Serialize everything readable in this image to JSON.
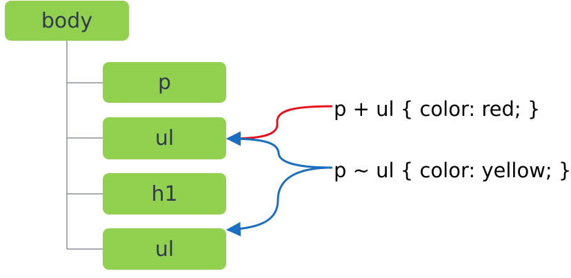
{
  "nodes": {
    "body": "body",
    "p": "p",
    "ul_first": "ul",
    "h1": "h1",
    "ul_second": "ul"
  },
  "rules": {
    "adjacent_sibling": "p + ul { color: red; }",
    "general_sibling": "p ~ ul { color: yellow; }"
  },
  "colors": {
    "node_fill": "#92d050",
    "node_text": "#2f3a4a",
    "tree_line": "#8a8f99",
    "adjacent_arrow": "#e8101a",
    "general_arrow": "#1a6fc0"
  }
}
